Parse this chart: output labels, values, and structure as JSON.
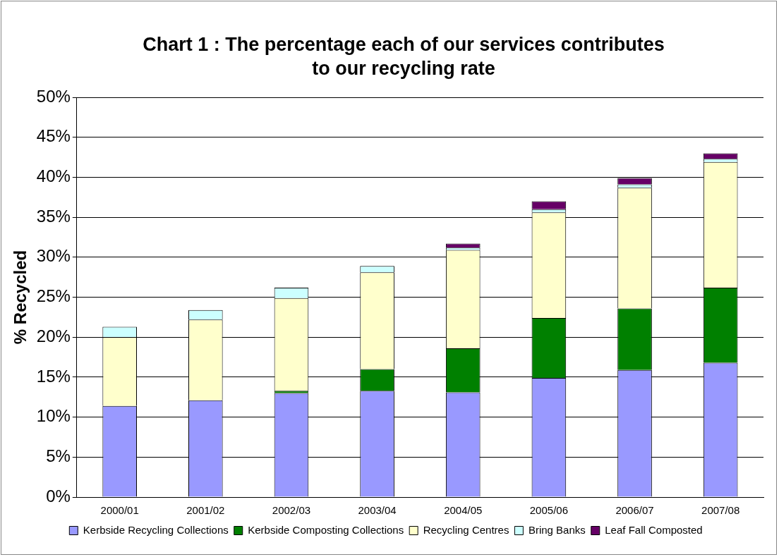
{
  "chart_data": {
    "type": "bar",
    "stacked": true,
    "title": "Chart 1 : The percentage each of our services contributes to our recycling rate",
    "ylabel": "% Recycled",
    "categories": [
      "2000/01",
      "2001/02",
      "2002/03",
      "2003/04",
      "2004/05",
      "2005/06",
      "2006/07",
      "2007/08"
    ],
    "series": [
      {
        "name": "Kerbside Recycling Collections",
        "color": "#9999ff",
        "values": [
          11.4,
          12.1,
          13.0,
          13.3,
          13.1,
          14.9,
          15.9,
          16.8
        ]
      },
      {
        "name": "Kerbside Composting Collections",
        "color": "#008000",
        "values": [
          0,
          0,
          0.3,
          2.7,
          5.5,
          7.5,
          7.7,
          9.4
        ]
      },
      {
        "name": "Recycling Centres",
        "color": "#ffffcc",
        "values": [
          8.6,
          10.1,
          11.6,
          12.1,
          12.3,
          13.2,
          15.1,
          15.7
        ]
      },
      {
        "name": "Bring Banks",
        "color": "#ccffff",
        "values": [
          1.3,
          1.2,
          1.3,
          0.8,
          0.3,
          0.4,
          0.4,
          0.4
        ]
      },
      {
        "name": "Leaf Fall Composted",
        "color": "#660066",
        "values": [
          0,
          0,
          0,
          0,
          0.5,
          1.0,
          0.8,
          0.7
        ]
      }
    ],
    "ylim": [
      0,
      50
    ],
    "yticks": [
      {
        "value": 0,
        "label": "0%"
      },
      {
        "value": 5,
        "label": "5%"
      },
      {
        "value": 10,
        "label": "10%"
      },
      {
        "value": 15,
        "label": "15%"
      },
      {
        "value": 20,
        "label": "20%"
      },
      {
        "value": 25,
        "label": "25%"
      },
      {
        "value": 30,
        "label": "30%"
      },
      {
        "value": 35,
        "label": "35%"
      },
      {
        "value": 40,
        "label": "40%"
      },
      {
        "value": 45,
        "label": "45%"
      },
      {
        "value": 50,
        "label": "50%"
      }
    ],
    "grid": "y",
    "legend": "bottom"
  }
}
